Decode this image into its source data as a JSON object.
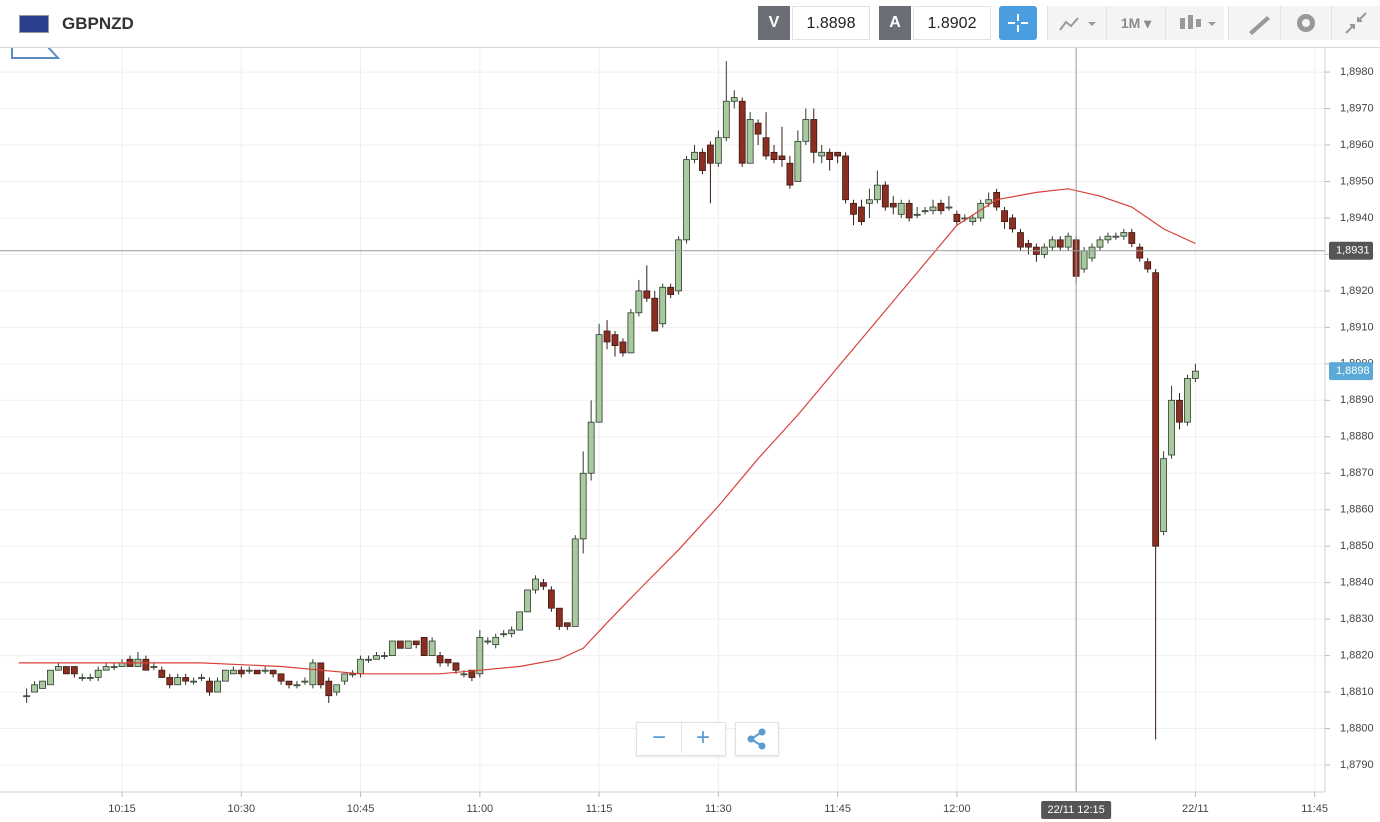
{
  "toolbar": {
    "symbol": "GBPNZD",
    "bid_label": "V",
    "bid": "1.8898",
    "ask_label": "A",
    "ask": "1.8902",
    "timeframe": "1M"
  },
  "chart_data": {
    "type": "candlestick",
    "x": [
      603,
      604,
      605,
      606,
      607,
      608,
      609,
      610,
      611,
      612,
      613,
      614,
      615,
      616,
      617,
      618,
      619,
      620,
      621,
      622,
      623,
      624,
      625,
      626,
      627,
      628,
      629,
      630,
      631,
      632,
      633,
      634,
      635,
      636,
      637,
      638,
      639,
      640,
      641,
      642,
      643,
      644,
      645,
      646,
      647,
      648,
      649,
      650,
      651,
      652,
      653,
      654,
      655,
      656,
      657,
      658,
      659,
      660,
      661,
      662,
      663,
      664,
      665,
      666,
      667,
      668,
      669,
      670,
      671,
      672,
      673,
      674,
      675,
      676,
      677,
      678,
      679,
      680,
      681,
      682,
      683,
      684,
      685,
      686,
      687,
      688,
      689,
      690,
      691,
      692,
      693,
      694,
      695,
      696,
      697,
      698,
      699,
      700,
      701,
      702,
      703,
      704,
      705,
      706,
      707,
      708,
      709,
      710,
      711,
      712,
      713,
      714,
      715,
      716,
      717,
      718,
      719,
      720,
      721,
      722,
      723,
      724,
      725,
      726,
      727,
      728,
      729,
      730,
      731,
      732,
      733,
      734,
      735,
      736,
      737,
      738,
      739,
      740,
      741,
      742,
      743,
      744,
      745,
      746,
      747,
      748,
      749,
      750
    ],
    "open": [
      1.8809,
      1.881,
      1.8811,
      1.8812,
      1.8816,
      1.8817,
      1.8817,
      1.8814,
      1.8814,
      1.8814,
      1.8816,
      1.8817,
      1.8817,
      1.8819,
      1.8817,
      1.8819,
      1.8817,
      1.8816,
      1.8814,
      1.8812,
      1.8814,
      1.8813,
      1.8814,
      1.8813,
      1.881,
      1.8813,
      1.8815,
      1.8816,
      1.8816,
      1.8816,
      1.8816,
      1.8816,
      1.8815,
      1.8813,
      1.8812,
      1.8813,
      1.8812,
      1.8818,
      1.8813,
      1.881,
      1.8813,
      1.8815,
      1.8815,
      1.8819,
      1.8819,
      1.882,
      1.882,
      1.8824,
      1.8822,
      1.8824,
      1.8825,
      1.882,
      1.882,
      1.8819,
      1.8818,
      1.8815,
      1.8816,
      1.8815,
      1.8824,
      1.8823,
      1.8826,
      1.8826,
      1.8827,
      1.8832,
      1.8838,
      1.884,
      1.8838,
      1.8833,
      1.8829,
      1.8828,
      1.8852,
      1.887,
      1.8884,
      1.8909,
      1.8908,
      1.8906,
      1.8903,
      1.8914,
      1.892,
      1.8918,
      1.8911,
      1.8921,
      1.892,
      1.8934,
      1.8956,
      1.8958,
      1.896,
      1.8955,
      1.8962,
      1.8972,
      1.8972,
      1.8955,
      1.8966,
      1.8962,
      1.8958,
      1.8957,
      1.8955,
      1.895,
      1.8961,
      1.8967,
      1.8957,
      1.8958,
      1.8958,
      1.8957,
      1.8944,
      1.8943,
      1.8944,
      1.8945,
      1.8949,
      1.8944,
      1.8941,
      1.8944,
      1.8941,
      1.8942,
      1.8942,
      1.8944,
      1.8943,
      1.8941,
      1.894,
      1.8939,
      1.894,
      1.8944,
      1.8947,
      1.8942,
      1.894,
      1.8936,
      1.8933,
      1.8932,
      1.893,
      1.8932,
      1.8934,
      1.8932,
      1.8934,
      1.8926,
      1.8929,
      1.8932,
      1.8934,
      1.8935,
      1.8935,
      1.8936,
      1.8932,
      1.8928,
      1.8925,
      1.8854,
      1.8875,
      1.889,
      1.8884,
      1.8896
    ],
    "high": [
      1.8811,
      1.8813,
      1.8813,
      1.8816,
      1.8818,
      1.8817,
      1.8817,
      1.8815,
      1.8815,
      1.8817,
      1.8818,
      1.8818,
      1.8819,
      1.882,
      1.8821,
      1.882,
      1.8818,
      1.8817,
      1.8815,
      1.8815,
      1.8815,
      1.8814,
      1.8815,
      1.8814,
      1.8814,
      1.8816,
      1.8817,
      1.8817,
      1.8817,
      1.8816,
      1.8817,
      1.8816,
      1.8815,
      1.8813,
      1.8813,
      1.8814,
      1.8819,
      1.8818,
      1.8814,
      1.8812,
      1.8815,
      1.8816,
      1.882,
      1.882,
      1.8821,
      1.8821,
      1.8824,
      1.8824,
      1.8824,
      1.8824,
      1.8825,
      1.8825,
      1.8821,
      1.8819,
      1.8818,
      1.8816,
      1.8816,
      1.8827,
      1.8825,
      1.8826,
      1.8827,
      1.8828,
      1.8832,
      1.8838,
      1.8842,
      1.8841,
      1.8839,
      1.8833,
      1.8829,
      1.8853,
      1.8876,
      1.889,
      1.8911,
      1.8912,
      1.8909,
      1.8907,
      1.8915,
      1.8923,
      1.8927,
      1.892,
      1.8922,
      1.8922,
      1.8935,
      1.8957,
      1.896,
      1.8959,
      1.8961,
      1.8964,
      1.8983,
      1.8975,
      1.8973,
      1.8969,
      1.8967,
      1.8969,
      1.896,
      1.8965,
      1.8957,
      1.8964,
      1.897,
      1.897,
      1.896,
      1.8959,
      1.8958,
      1.8958,
      1.8945,
      1.8945,
      1.8948,
      1.8953,
      1.895,
      1.8946,
      1.8945,
      1.8945,
      1.8943,
      1.8943,
      1.8945,
      1.8945,
      1.8946,
      1.8942,
      1.8941,
      1.8941,
      1.8945,
      1.8947,
      1.8948,
      1.8943,
      1.8941,
      1.8937,
      1.8934,
      1.8933,
      1.8933,
      1.8935,
      1.8935,
      1.8936,
      1.8935,
      1.8932,
      1.8933,
      1.8935,
      1.8936,
      1.8936,
      1.8937,
      1.8937,
      1.8933,
      1.8929,
      1.8926,
      1.8876,
      1.8894,
      1.8892,
      1.8897,
      1.89
    ],
    "low": [
      1.8807,
      1.881,
      1.8811,
      1.8812,
      1.8816,
      1.8815,
      1.8814,
      1.8813,
      1.8813,
      1.8813,
      1.8816,
      1.8816,
      1.8817,
      1.8817,
      1.8817,
      1.8816,
      1.8816,
      1.8814,
      1.8811,
      1.8812,
      1.8812,
      1.8812,
      1.8813,
      1.8809,
      1.881,
      1.8813,
      1.8815,
      1.8814,
      1.8815,
      1.8815,
      1.8815,
      1.8814,
      1.8812,
      1.8811,
      1.8811,
      1.8812,
      1.8811,
      1.8811,
      1.8807,
      1.8809,
      1.8812,
      1.8814,
      1.8814,
      1.8818,
      1.8819,
      1.8819,
      1.882,
      1.8822,
      1.8822,
      1.8822,
      1.882,
      1.882,
      1.8817,
      1.8817,
      1.8815,
      1.8814,
      1.8813,
      1.8814,
      1.8823,
      1.8822,
      1.8825,
      1.8825,
      1.8827,
      1.8832,
      1.8837,
      1.8838,
      1.8832,
      1.8827,
      1.8827,
      1.8828,
      1.8848,
      1.8868,
      1.8884,
      1.8904,
      1.8902,
      1.8902,
      1.8903,
      1.8913,
      1.8917,
      1.8909,
      1.891,
      1.8918,
      1.8919,
      1.8933,
      1.8955,
      1.8952,
      1.8944,
      1.8954,
      1.8961,
      1.897,
      1.8954,
      1.8955,
      1.896,
      1.8956,
      1.8955,
      1.8954,
      1.8948,
      1.895,
      1.896,
      1.8955,
      1.8955,
      1.8953,
      1.8955,
      1.8944,
      1.8938,
      1.8938,
      1.894,
      1.8944,
      1.8942,
      1.8941,
      1.894,
      1.8939,
      1.894,
      1.8941,
      1.8941,
      1.8941,
      1.8942,
      1.8938,
      1.8939,
      1.8938,
      1.8939,
      1.8943,
      1.8942,
      1.8937,
      1.8936,
      1.8931,
      1.893,
      1.8928,
      1.8929,
      1.8931,
      1.8931,
      1.8931,
      1.8922,
      1.8925,
      1.8928,
      1.8931,
      1.8933,
      1.8934,
      1.8934,
      1.8932,
      1.8928,
      1.8925,
      1.8797,
      1.8853,
      1.8874,
      1.8882,
      1.8883,
      1.8895
    ],
    "close": [
      1.8809,
      1.8812,
      1.8813,
      1.8816,
      1.8817,
      1.8815,
      1.8815,
      1.8814,
      1.8814,
      1.8816,
      1.8817,
      1.8817,
      1.8818,
      1.8817,
      1.8819,
      1.8816,
      1.8817,
      1.8814,
      1.8812,
      1.8814,
      1.8813,
      1.8813,
      1.8814,
      1.881,
      1.8813,
      1.8816,
      1.8816,
      1.8815,
      1.8816,
      1.8815,
      1.8816,
      1.8815,
      1.8813,
      1.8812,
      1.8812,
      1.8813,
      1.8818,
      1.8812,
      1.8809,
      1.8812,
      1.8815,
      1.8815,
      1.8819,
      1.8819,
      1.882,
      1.882,
      1.8824,
      1.8822,
      1.8824,
      1.8823,
      1.882,
      1.8824,
      1.8818,
      1.8818,
      1.8816,
      1.8815,
      1.8814,
      1.8825,
      1.8824,
      1.8825,
      1.8826,
      1.8827,
      1.8832,
      1.8838,
      1.8841,
      1.8839,
      1.8833,
      1.8828,
      1.8828,
      1.8852,
      1.887,
      1.8884,
      1.8908,
      1.8906,
      1.8905,
      1.8903,
      1.8914,
      1.892,
      1.8918,
      1.8909,
      1.8921,
      1.8919,
      1.8934,
      1.8956,
      1.8958,
      1.8953,
      1.8955,
      1.8962,
      1.8972,
      1.8973,
      1.8955,
      1.8967,
      1.8963,
      1.8957,
      1.8956,
      1.8956,
      1.8949,
      1.8961,
      1.8967,
      1.8958,
      1.8958,
      1.8956,
      1.8957,
      1.8945,
      1.8941,
      1.8939,
      1.8945,
      1.8949,
      1.8943,
      1.8943,
      1.8944,
      1.894,
      1.8941,
      1.8942,
      1.8943,
      1.8942,
      1.8943,
      1.8939,
      1.894,
      1.894,
      1.8944,
      1.8945,
      1.8943,
      1.8939,
      1.8937,
      1.8932,
      1.8932,
      1.893,
      1.8932,
      1.8934,
      1.8932,
      1.8935,
      1.8924,
      1.8931,
      1.8932,
      1.8934,
      1.8935,
      1.8935,
      1.8936,
      1.8933,
      1.8929,
      1.8926,
      1.885,
      1.8874,
      1.889,
      1.8884,
      1.8896,
      1.8898
    ],
    "up_color": "#a9c99f",
    "down_color": "#8b2e22",
    "ma": {
      "color": "#d9413a",
      "x": [
        602,
        615,
        625,
        635,
        645,
        655,
        660,
        665,
        670,
        673,
        676,
        680,
        685,
        690,
        695,
        700,
        705,
        710,
        715,
        720,
        725,
        730,
        734,
        738,
        742,
        746,
        750
      ],
      "values": [
        1.8818,
        1.8818,
        1.8818,
        1.8817,
        1.8815,
        1.8815,
        1.8816,
        1.8817,
        1.8819,
        1.8822,
        1.8829,
        1.8838,
        1.8849,
        1.8861,
        1.8874,
        1.8886,
        1.8899,
        1.8912,
        1.8925,
        1.8938,
        1.8945,
        1.8947,
        1.8948,
        1.8946,
        1.8943,
        1.8937,
        1.8933
      ]
    },
    "xlim": [
      599.65,
      766.3
    ],
    "xticks": [
      {
        "value": 615,
        "label": "10:15"
      },
      {
        "value": 630,
        "label": "10:30"
      },
      {
        "value": 645,
        "label": "10:45"
      },
      {
        "value": 660,
        "label": "11:00"
      },
      {
        "value": 675,
        "label": "11:15"
      },
      {
        "value": 690,
        "label": "11:30"
      },
      {
        "value": 705,
        "label": "11:45"
      },
      {
        "value": 720,
        "label": "12:00"
      },
      {
        "value": 750,
        "label": "22/11"
      },
      {
        "value": 765,
        "label": "11:45"
      }
    ],
    "ylim": [
      1.87826,
      1.89866
    ],
    "yticks": [
      {
        "value": 1.879,
        "label": "1,8790"
      },
      {
        "value": 1.88,
        "label": "1,8800"
      },
      {
        "value": 1.881,
        "label": "1,8810"
      },
      {
        "value": 1.882,
        "label": "1,8820"
      },
      {
        "value": 1.883,
        "label": "1,8830"
      },
      {
        "value": 1.884,
        "label": "1,8840"
      },
      {
        "value": 1.885,
        "label": "1,8850"
      },
      {
        "value": 1.886,
        "label": "1,8860"
      },
      {
        "value": 1.887,
        "label": "1,8870"
      },
      {
        "value": 1.888,
        "label": "1,8880"
      },
      {
        "value": 1.889,
        "label": "1,8890"
      },
      {
        "value": 1.89,
        "label": "1,8900"
      },
      {
        "value": 1.891,
        "label": "1,8910"
      },
      {
        "value": 1.892,
        "label": "1,8920"
      },
      {
        "value": 1.893,
        "label": "1,8930"
      },
      {
        "value": 1.894,
        "label": "1,8940"
      },
      {
        "value": 1.895,
        "label": "1,8950"
      },
      {
        "value": 1.896,
        "label": "1,8960"
      },
      {
        "value": 1.897,
        "label": "1,8970"
      },
      {
        "value": 1.898,
        "label": "1,8980"
      }
    ],
    "grid": true,
    "crosshair": {
      "x": 735,
      "x_label": "22/11 12:15",
      "y": 1.8931,
      "y_label": "1,8931"
    },
    "last_price": {
      "value": 1.8898,
      "label": "1,8898"
    }
  }
}
